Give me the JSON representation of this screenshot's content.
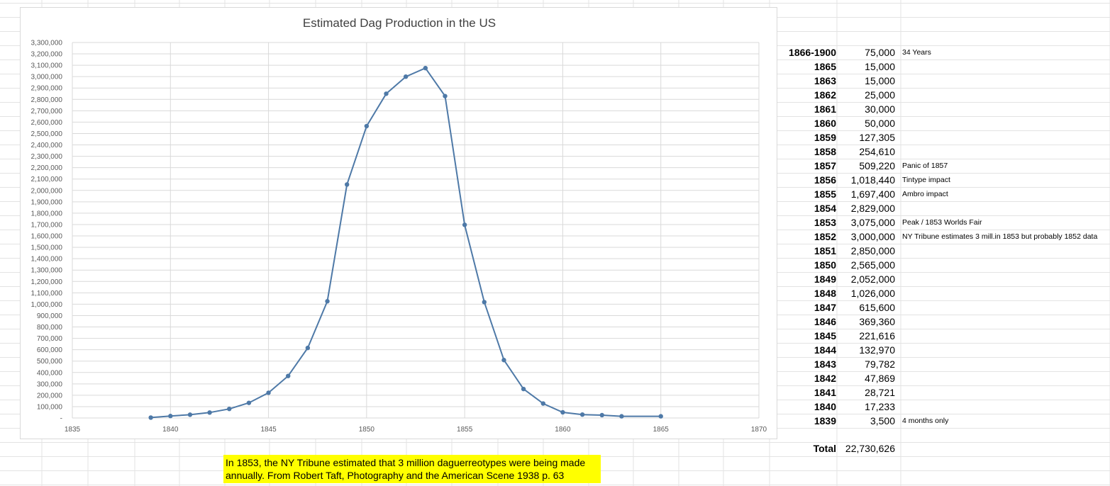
{
  "chart_data": {
    "type": "line",
    "title": "Estimated Dag Production in the US",
    "xlabel": "",
    "ylabel": "",
    "xlim": [
      1835,
      1870
    ],
    "ylim": [
      0,
      3300000
    ],
    "x_ticks": [
      "1835",
      "1840",
      "1845",
      "1850",
      "1855",
      "1860",
      "1865",
      "1870"
    ],
    "y_ticks": [
      "3,300,000",
      "3,200,000",
      "3,100,000",
      "3,000,000",
      "2,900,000",
      "2,800,000",
      "2,700,000",
      "2,600,000",
      "2,500,000",
      "2,400,000",
      "2,300,000",
      "2,200,000",
      "2,100,000",
      "2,000,000",
      "1,900,000",
      "1,800,000",
      "1,700,000",
      "1,600,000",
      "1,500,000",
      "1,400,000",
      "1,300,000",
      "1,200,000",
      "1,100,000",
      "1,000,000",
      "900,000",
      "800,000",
      "700,000",
      "600,000",
      "500,000",
      "400,000",
      "300,000",
      "200,000",
      "100,000",
      "-"
    ],
    "grid": true,
    "series_color": "#4e79a7",
    "x": [
      1839,
      1840,
      1841,
      1842,
      1843,
      1844,
      1845,
      1846,
      1847,
      1848,
      1849,
      1850,
      1851,
      1852,
      1853,
      1854,
      1855,
      1856,
      1857,
      1858,
      1859,
      1860,
      1861,
      1862,
      1863,
      1865
    ],
    "values": [
      3500,
      17233,
      28721,
      47869,
      79782,
      132970,
      221616,
      369360,
      615600,
      1026000,
      2052000,
      2565000,
      2850000,
      3000000,
      3075000,
      2829000,
      1697400,
      1018440,
      509220,
      254610,
      127305,
      50000,
      30000,
      25000,
      15000,
      15000
    ]
  },
  "table": {
    "rows": [
      {
        "year": "1866-1900",
        "value": "75,000",
        "note": "34 Years"
      },
      {
        "year": "1865",
        "value": "15,000",
        "note": ""
      },
      {
        "year": "1863",
        "value": "15,000",
        "note": ""
      },
      {
        "year": "1862",
        "value": "25,000",
        "note": ""
      },
      {
        "year": "1861",
        "value": "30,000",
        "note": ""
      },
      {
        "year": "1860",
        "value": "50,000",
        "note": ""
      },
      {
        "year": "1859",
        "value": "127,305",
        "note": ""
      },
      {
        "year": "1858",
        "value": "254,610",
        "note": ""
      },
      {
        "year": "1857",
        "value": "509,220",
        "note": "Panic of 1857"
      },
      {
        "year": "1856",
        "value": "1,018,440",
        "note": "Tintype impact"
      },
      {
        "year": "1855",
        "value": "1,697,400",
        "note": "Ambro impact"
      },
      {
        "year": "1854",
        "value": "2,829,000",
        "note": ""
      },
      {
        "year": "1853",
        "value": "3,075,000",
        "note": "Peak / 1853 Worlds Fair"
      },
      {
        "year": "1852",
        "value": "3,000,000",
        "note": "NY Tribune estimates 3 mill.in 1853 but probably 1852 data"
      },
      {
        "year": "1851",
        "value": "2,850,000",
        "note": ""
      },
      {
        "year": "1850",
        "value": "2,565,000",
        "note": ""
      },
      {
        "year": "1849",
        "value": "2,052,000",
        "note": ""
      },
      {
        "year": "1848",
        "value": "1,026,000",
        "note": ""
      },
      {
        "year": "1847",
        "value": "615,600",
        "note": ""
      },
      {
        "year": "1846",
        "value": "369,360",
        "note": ""
      },
      {
        "year": "1845",
        "value": "221,616",
        "note": ""
      },
      {
        "year": "1844",
        "value": "132,970",
        "note": ""
      },
      {
        "year": "1843",
        "value": "79,782",
        "note": ""
      },
      {
        "year": "1842",
        "value": "47,869",
        "note": ""
      },
      {
        "year": "1841",
        "value": "28,721",
        "note": ""
      },
      {
        "year": "1840",
        "value": "17,233",
        "note": ""
      },
      {
        "year": "1839",
        "value": "3,500",
        "note": "4 months only"
      }
    ],
    "total_label": "Total",
    "total_value": "22,730,626"
  },
  "note": {
    "line1": "In 1853, the NY Tribune estimated that 3 million daguerreotypes were being made",
    "line2": "annually.  From Robert Taft, Photography and the American Scene 1938 p. 63",
    "background": "#ffff00"
  }
}
